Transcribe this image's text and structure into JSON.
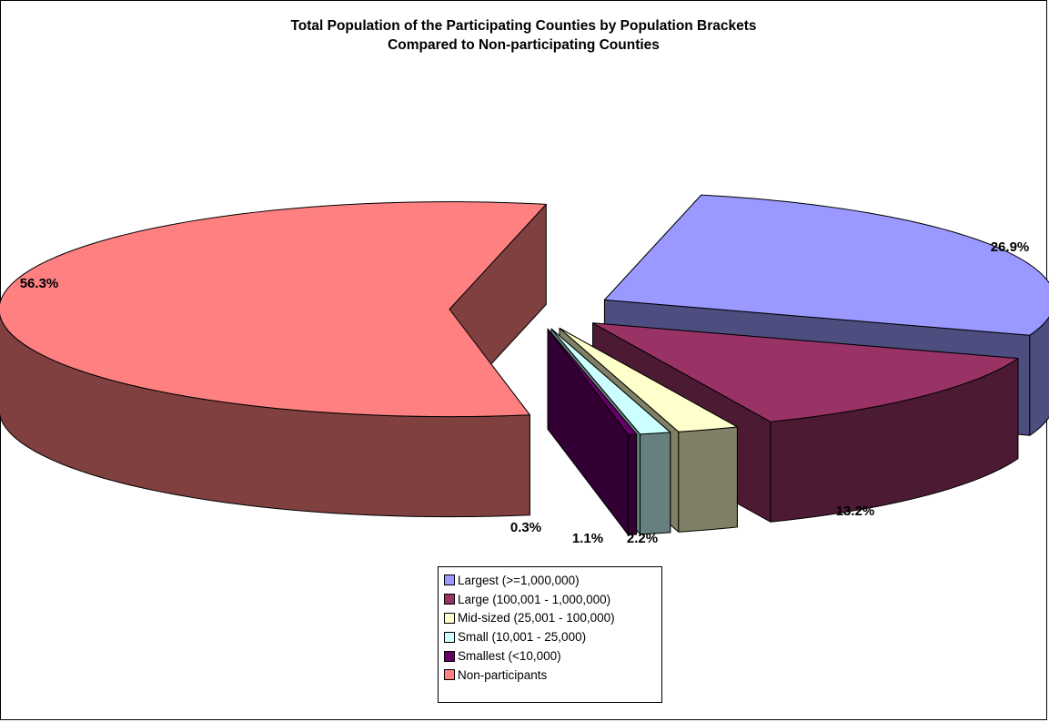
{
  "chart_data": {
    "type": "pie",
    "title": "Total Population of the Participating Counties by Population Brackets",
    "subtitle": "Compared to Non-participating Counties",
    "slices": [
      {
        "name": "Largest (>=1,000,000)",
        "value": 26.9,
        "label": "26.9%",
        "color": "#9999ff",
        "side_color": "#4d4d80"
      },
      {
        "name": "Large (100,001 - 1,000,000)",
        "value": 13.2,
        "label": "13.2%",
        "color": "#993366",
        "side_color": "#4d1a33"
      },
      {
        "name": "Mid-sized (25,001 - 100,000)",
        "value": 2.2,
        "label": "2.2%",
        "color": "#ffffcc",
        "side_color": "#808066"
      },
      {
        "name": "Small (10,001 - 25,000)",
        "value": 1.1,
        "label": "1.1%",
        "color": "#ccffff",
        "side_color": "#668080"
      },
      {
        "name": "Smallest (<10,000)",
        "value": 0.3,
        "label": "0.3%",
        "color": "#660066",
        "side_color": "#330033"
      },
      {
        "name": "Non-participants",
        "value": 56.3,
        "label": "56.3%",
        "color": "#ff8080",
        "side_color": "#804040"
      }
    ],
    "legend_position": "bottom"
  }
}
